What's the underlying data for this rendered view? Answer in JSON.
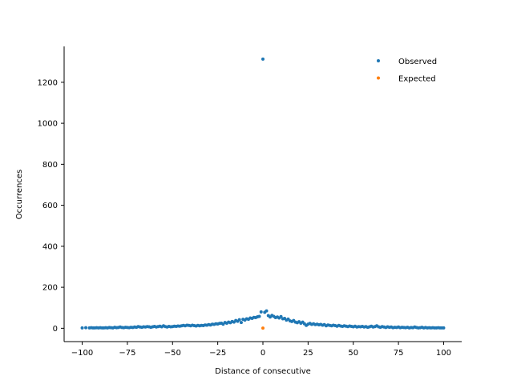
{
  "chart_data": {
    "type": "scatter",
    "title": "",
    "xlabel": "Distance of consecutive",
    "ylabel": "Occurrences",
    "xlim": [
      -110,
      110
    ],
    "ylim": [
      -65,
      1375
    ],
    "xticks": [
      -100,
      -75,
      -50,
      -25,
      0,
      25,
      50,
      75,
      100
    ],
    "yticks": [
      0,
      200,
      400,
      600,
      800,
      1000,
      1200
    ],
    "grid": false,
    "legend_position": "top-right",
    "colors": {
      "Observed": "#1f77b4",
      "Expected": "#ff7f0e"
    },
    "series": [
      {
        "name": "Observed",
        "points": [
          [
            -100,
            2
          ],
          [
            -98,
            3
          ],
          [
            -96,
            2
          ],
          [
            -95,
            3
          ],
          [
            -94,
            2
          ],
          [
            -93,
            2
          ],
          [
            -92,
            3
          ],
          [
            -91,
            2
          ],
          [
            -90,
            3
          ],
          [
            -89,
            2
          ],
          [
            -88,
            2
          ],
          [
            -87,
            3
          ],
          [
            -86,
            2
          ],
          [
            -85,
            4
          ],
          [
            -84,
            3
          ],
          [
            -83,
            2
          ],
          [
            -82,
            5
          ],
          [
            -81,
            3
          ],
          [
            -80,
            4
          ],
          [
            -79,
            6
          ],
          [
            -78,
            4
          ],
          [
            -77,
            3
          ],
          [
            -76,
            5
          ],
          [
            -75,
            4
          ],
          [
            -74,
            3
          ],
          [
            -73,
            5
          ],
          [
            -72,
            4
          ],
          [
            -71,
            6
          ],
          [
            -70,
            5
          ],
          [
            -69,
            8
          ],
          [
            -68,
            6
          ],
          [
            -67,
            5
          ],
          [
            -66,
            7
          ],
          [
            -65,
            6
          ],
          [
            -64,
            8
          ],
          [
            -63,
            7
          ],
          [
            -62,
            5
          ],
          [
            -61,
            7
          ],
          [
            -60,
            9
          ],
          [
            -59,
            6
          ],
          [
            -58,
            8
          ],
          [
            -57,
            10
          ],
          [
            -56,
            7
          ],
          [
            -55,
            12
          ],
          [
            -54,
            8
          ],
          [
            -53,
            6
          ],
          [
            -52,
            9
          ],
          [
            -51,
            7
          ],
          [
            -50,
            8
          ],
          [
            -49,
            10
          ],
          [
            -48,
            9
          ],
          [
            -47,
            11
          ],
          [
            -46,
            10
          ],
          [
            -45,
            12
          ],
          [
            -44,
            14
          ],
          [
            -43,
            12
          ],
          [
            -42,
            15
          ],
          [
            -41,
            14
          ],
          [
            -40,
            12
          ],
          [
            -39,
            15
          ],
          [
            -38,
            13
          ],
          [
            -37,
            11
          ],
          [
            -36,
            14
          ],
          [
            -35,
            12
          ],
          [
            -34,
            14
          ],
          [
            -33,
            13
          ],
          [
            -32,
            16
          ],
          [
            -31,
            15
          ],
          [
            -30,
            18
          ],
          [
            -29,
            16
          ],
          [
            -28,
            20
          ],
          [
            -27,
            19
          ],
          [
            -26,
            22
          ],
          [
            -25,
            21
          ],
          [
            -24,
            24
          ],
          [
            -23,
            25
          ],
          [
            -22,
            20
          ],
          [
            -21,
            28
          ],
          [
            -20,
            25
          ],
          [
            -19,
            30
          ],
          [
            -18,
            27
          ],
          [
            -17,
            33
          ],
          [
            -16,
            30
          ],
          [
            -15,
            38
          ],
          [
            -14,
            34
          ],
          [
            -13,
            42
          ],
          [
            -12,
            28
          ],
          [
            -11,
            44
          ],
          [
            -10,
            40
          ],
          [
            -9,
            46
          ],
          [
            -8,
            44
          ],
          [
            -7,
            50
          ],
          [
            -6,
            48
          ],
          [
            -5,
            53
          ],
          [
            -4,
            52
          ],
          [
            -3,
            56
          ],
          [
            -2,
            58
          ],
          [
            -1,
            80
          ],
          [
            1,
            78
          ],
          [
            2,
            85
          ],
          [
            3,
            62
          ],
          [
            4,
            55
          ],
          [
            5,
            63
          ],
          [
            6,
            58
          ],
          [
            7,
            52
          ],
          [
            8,
            55
          ],
          [
            9,
            50
          ],
          [
            10,
            57
          ],
          [
            11,
            46
          ],
          [
            12,
            48
          ],
          [
            13,
            40
          ],
          [
            14,
            45
          ],
          [
            15,
            36
          ],
          [
            16,
            33
          ],
          [
            17,
            38
          ],
          [
            18,
            30
          ],
          [
            19,
            27
          ],
          [
            20,
            32
          ],
          [
            21,
            25
          ],
          [
            22,
            30
          ],
          [
            23,
            22
          ],
          [
            24,
            14
          ],
          [
            25,
            20
          ],
          [
            26,
            24
          ],
          [
            27,
            19
          ],
          [
            28,
            22
          ],
          [
            29,
            18
          ],
          [
            30,
            20
          ],
          [
            31,
            17
          ],
          [
            32,
            19
          ],
          [
            33,
            15
          ],
          [
            34,
            18
          ],
          [
            35,
            12
          ],
          [
            36,
            16
          ],
          [
            37,
            14
          ],
          [
            38,
            12
          ],
          [
            39,
            15
          ],
          [
            40,
            13
          ],
          [
            41,
            10
          ],
          [
            42,
            14
          ],
          [
            43,
            11
          ],
          [
            44,
            9
          ],
          [
            45,
            12
          ],
          [
            46,
            10
          ],
          [
            47,
            8
          ],
          [
            48,
            11
          ],
          [
            49,
            9
          ],
          [
            50,
            7
          ],
          [
            51,
            10
          ],
          [
            52,
            6
          ],
          [
            53,
            8
          ],
          [
            54,
            7
          ],
          [
            55,
            9
          ],
          [
            56,
            6
          ],
          [
            57,
            8
          ],
          [
            58,
            5
          ],
          [
            59,
            7
          ],
          [
            60,
            10
          ],
          [
            61,
            6
          ],
          [
            62,
            8
          ],
          [
            63,
            12
          ],
          [
            64,
            7
          ],
          [
            65,
            5
          ],
          [
            66,
            8
          ],
          [
            67,
            6
          ],
          [
            68,
            4
          ],
          [
            69,
            7
          ],
          [
            70,
            5
          ],
          [
            71,
            6
          ],
          [
            72,
            3
          ],
          [
            73,
            5
          ],
          [
            74,
            4
          ],
          [
            75,
            6
          ],
          [
            76,
            3
          ],
          [
            77,
            5
          ],
          [
            78,
            4
          ],
          [
            79,
            3
          ],
          [
            80,
            5
          ],
          [
            81,
            2
          ],
          [
            82,
            4
          ],
          [
            83,
            3
          ],
          [
            84,
            6
          ],
          [
            85,
            4
          ],
          [
            86,
            2
          ],
          [
            87,
            3
          ],
          [
            88,
            5
          ],
          [
            89,
            2
          ],
          [
            90,
            4
          ],
          [
            91,
            2
          ],
          [
            92,
            3
          ],
          [
            93,
            2
          ],
          [
            94,
            3
          ],
          [
            95,
            2
          ],
          [
            96,
            2
          ],
          [
            97,
            3
          ],
          [
            98,
            2
          ],
          [
            99,
            2
          ],
          [
            100,
            2
          ],
          [
            0,
            1313
          ]
        ]
      },
      {
        "name": "Expected",
        "points": [
          [
            0,
            1
          ]
        ]
      }
    ]
  }
}
